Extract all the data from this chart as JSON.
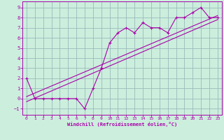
{
  "xlabel": "Windchill (Refroidissement éolien,°C)",
  "bg_color": "#cceedd",
  "line_color": "#aa00aa",
  "grid_color": "#99bbbb",
  "xlim": [
    -0.5,
    23.5
  ],
  "ylim": [
    -1.6,
    9.6
  ],
  "xticks": [
    0,
    1,
    2,
    3,
    4,
    5,
    6,
    7,
    8,
    9,
    10,
    11,
    12,
    13,
    14,
    15,
    16,
    17,
    18,
    19,
    20,
    21,
    22,
    23
  ],
  "yticks": [
    -1,
    0,
    1,
    2,
    3,
    4,
    5,
    6,
    7,
    8,
    9
  ],
  "data_x": [
    0,
    1,
    2,
    3,
    4,
    5,
    6,
    7,
    8,
    9,
    10,
    11,
    12,
    13,
    14,
    15,
    16,
    17,
    18,
    19,
    20,
    21,
    22,
    23
  ],
  "data_y": [
    2,
    0,
    0,
    0,
    0,
    0,
    0,
    -1,
    1,
    3,
    5.5,
    6.5,
    7,
    6.5,
    7.5,
    7,
    7,
    6.5,
    8,
    8,
    8.5,
    9,
    8,
    8
  ],
  "trend_x": [
    0,
    23
  ],
  "trend_y": [
    0.2,
    8.2
  ],
  "trend2_x": [
    0,
    23
  ],
  "trend2_y": [
    -0.3,
    7.8
  ]
}
